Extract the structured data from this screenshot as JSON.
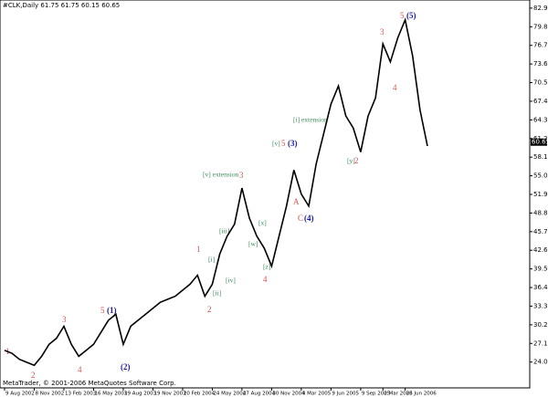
{
  "chart_data": {
    "type": "line",
    "header": "#CLK,Daily  61.75 61.75 60.15 60.65",
    "footer": "MetaTrader, © 2001-2006 MetaQuotes Software Corp.",
    "categories": [
      "9 Aug 2002",
      null,
      null,
      null,
      "8 Nov 2002",
      null,
      null,
      null,
      "13 Feb 2003",
      null,
      null,
      null,
      "16 May 2003",
      null,
      null,
      null,
      "19 Aug 2003",
      null,
      null,
      null,
      "19 Nov 2003",
      null,
      null,
      null,
      "20 Feb 2004",
      null,
      null,
      null,
      "24 May 2004",
      null,
      null,
      null,
      "27 Aug 2004",
      null,
      null,
      null,
      "30 Nov 2004",
      null,
      null,
      null,
      "4 Mar 2005",
      null,
      null,
      null,
      "9 Jun 2005",
      null,
      null,
      null,
      "9 Sep 2005",
      null,
      null,
      "2 Mar 2006",
      null,
      null,
      "23 Jun 2006",
      null,
      null,
      null
    ],
    "values": [
      26,
      25.5,
      24.5,
      24,
      23.5,
      25,
      27,
      28,
      30,
      27,
      25,
      26,
      27,
      29,
      31,
      32,
      27,
      30,
      31,
      32,
      33,
      34,
      34.5,
      35,
      36,
      37,
      38.5,
      35,
      37,
      42,
      45,
      47,
      53,
      48,
      45,
      43,
      40,
      45,
      50,
      56,
      52,
      50,
      57,
      62,
      67,
      70,
      65,
      63,
      59,
      65,
      68,
      77,
      74,
      78,
      81,
      75,
      66,
      60
    ],
    "color": "#000000",
    "last_price": 60.65,
    "ylim": [
      19.75,
      84.3
    ],
    "yticks": [
      82.95,
      79.85,
      76.75,
      73.65,
      70.55,
      67.45,
      64.35,
      61.25,
      58.15,
      55.05,
      51.95,
      48.85,
      45.75,
      42.65,
      39.55,
      36.45,
      33.35,
      30.25,
      27.15,
      24.05
    ],
    "grid": false,
    "annotations": [
      "1",
      "2",
      "3",
      "4",
      "5",
      "(1)",
      "(2)",
      "1",
      "2",
      "3",
      "4",
      "5",
      "(3)",
      "A",
      "C",
      "(4)",
      "2",
      "3",
      "4",
      "5",
      "(5)",
      "[v] extension",
      "[i] extension",
      "[i]",
      "[ii]",
      "[iii]",
      "[iv]",
      "[v]",
      "[w]",
      "[x]",
      "[y]",
      "[z]"
    ]
  }
}
